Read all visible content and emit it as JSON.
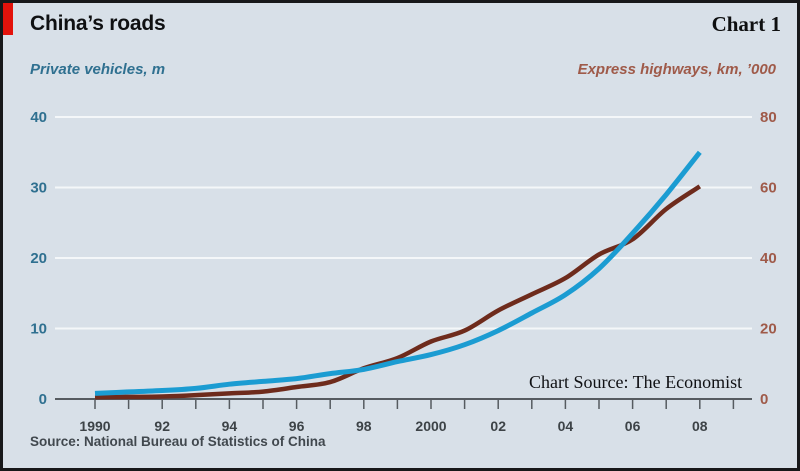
{
  "header": {
    "title": "China’s roads",
    "corner_tag": "Chart 1"
  },
  "subtitles": {
    "left": "Private vehicles, m",
    "right": "Express highways, km, ’000"
  },
  "annotations": {
    "chart_source": "Chart Source: The Economist"
  },
  "footer": {
    "source": "Source: National Bureau of Statistics of China"
  },
  "colors": {
    "background": "#d8e0e8",
    "frame_border": "#17181a",
    "badge_red": "#e3120b",
    "grid": "#f4f7f9",
    "axis": "#565b60",
    "vehicles_line": "#1b9cd2",
    "highways_line": "#6e2b1c",
    "left_axis_text": "#2f7090",
    "right_axis_text": "#9f5a49",
    "year_text": "#3d4347"
  },
  "chart_data": {
    "type": "line",
    "title": "China’s roads",
    "x": [
      1990,
      1991,
      1992,
      1993,
      1994,
      1995,
      1996,
      1997,
      1998,
      1999,
      2000,
      2001,
      2002,
      2003,
      2004,
      2005,
      2006,
      2007,
      2008
    ],
    "series": [
      {
        "id": "private-vehicles",
        "name": "Private vehicles, m",
        "axis": "left",
        "color": "#1b9cd2",
        "values": [
          0.8,
          1.0,
          1.2,
          1.5,
          2.1,
          2.5,
          2.9,
          3.6,
          4.2,
          5.3,
          6.3,
          7.7,
          9.7,
          12.2,
          14.8,
          18.5,
          23.5,
          29.0,
          35.0
        ]
      },
      {
        "id": "express-highways",
        "name": "Express highways, km, ’000",
        "axis": "right",
        "color": "#6e2b1c",
        "values": [
          0.5,
          0.6,
          0.7,
          1.1,
          1.6,
          2.1,
          3.4,
          4.8,
          8.7,
          11.6,
          16.3,
          19.4,
          25.1,
          29.7,
          34.3,
          41.0,
          45.3,
          53.9,
          60.3
        ]
      }
    ],
    "left_axis": {
      "label": "Private vehicles, m",
      "ticks": [
        0,
        10,
        20,
        30,
        40
      ],
      "range": [
        0,
        40
      ]
    },
    "right_axis": {
      "label": "Express highways, km, ’000",
      "ticks": [
        0,
        20,
        40,
        60,
        80
      ],
      "range": [
        0,
        80
      ]
    },
    "x_tick_labels": [
      {
        "x": 1990,
        "label": "1990"
      },
      {
        "x": 1992,
        "label": "92"
      },
      {
        "x": 1994,
        "label": "94"
      },
      {
        "x": 1996,
        "label": "96"
      },
      {
        "x": 1998,
        "label": "98"
      },
      {
        "x": 2000,
        "label": "2000"
      },
      {
        "x": 2002,
        "label": "02"
      },
      {
        "x": 2004,
        "label": "04"
      },
      {
        "x": 2006,
        "label": "06"
      },
      {
        "x": 2008,
        "label": "08"
      }
    ],
    "x_minor_ticks": [
      1990,
      1991,
      1992,
      1993,
      1994,
      1995,
      1996,
      1997,
      1998,
      1999,
      2000,
      2001,
      2002,
      2003,
      2004,
      2005,
      2006,
      2007,
      2008,
      2009
    ],
    "grid": "horizontal",
    "legend": "none"
  }
}
